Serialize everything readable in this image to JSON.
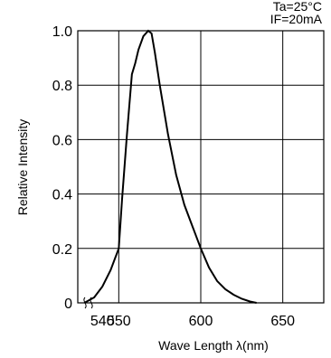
{
  "chart_data": {
    "type": "line",
    "conditions": [
      "Ta=25°C",
      "IF=20mA"
    ],
    "xlabel": "Wave Length  λ(nm)",
    "ylabel": "Relative Intensity",
    "xlim": [
      525,
      675
    ],
    "ylim": [
      0,
      1.0
    ],
    "x_ticks": [
      "540",
      "550",
      "600",
      "650"
    ],
    "y_ticks": [
      "0",
      "0.2",
      "0.4",
      "0.6",
      "0.8",
      "1.0"
    ],
    "grid": true,
    "axis_break": "x",
    "series": [
      {
        "x": [
          529,
          535,
          540,
          545,
          550,
          552,
          555,
          558,
          560,
          562,
          565,
          568,
          570,
          572,
          575,
          580,
          585,
          590,
          595,
          600,
          605,
          610,
          615,
          620,
          625,
          630,
          634
        ],
        "y": [
          0.0,
          0.02,
          0.06,
          0.12,
          0.2,
          0.38,
          0.62,
          0.84,
          0.88,
          0.93,
          0.98,
          1.0,
          0.99,
          0.92,
          0.8,
          0.62,
          0.47,
          0.36,
          0.28,
          0.2,
          0.13,
          0.08,
          0.05,
          0.03,
          0.015,
          0.005,
          0.0
        ]
      }
    ]
  }
}
